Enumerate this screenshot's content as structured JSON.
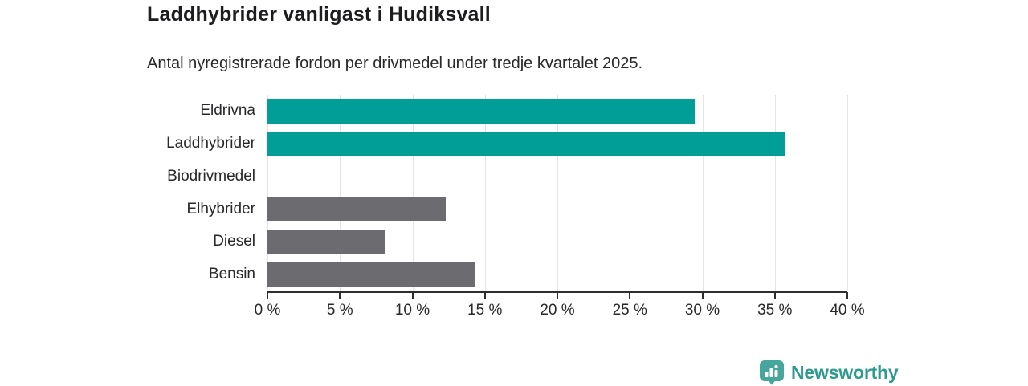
{
  "header": {
    "title": "Laddhybrider vanligast i Hudiksvall",
    "subtitle": "Antal nyregistrerade fordon per drivmedel under tredje kvartalet 2025."
  },
  "chart_data": {
    "type": "bar",
    "orientation": "horizontal",
    "title": "Laddhybrider vanligast i Hudiksvall",
    "subtitle": "Antal nyregistrerade fordon per drivmedel under tredje kvartalet 2025.",
    "categories": [
      "Eldrivna",
      "Laddhybrider",
      "Biodrivmedel",
      "Elhybrider",
      "Diesel",
      "Bensin"
    ],
    "values": [
      29.5,
      35.7,
      0,
      12.3,
      8.1,
      14.3
    ],
    "unit": "%",
    "bar_colors": [
      "#009e96",
      "#009e96",
      "#6b6b70",
      "#6b6b70",
      "#6b6b70",
      "#6b6b70"
    ],
    "xlim": [
      0,
      40
    ],
    "x_ticks": [
      0,
      5,
      10,
      15,
      20,
      25,
      30,
      35,
      40
    ],
    "x_tick_labels": [
      "0 %",
      "5 %",
      "10 %",
      "15 %",
      "20 %",
      "25 %",
      "30 %",
      "35 %",
      "40 %"
    ],
    "xlabel": "",
    "ylabel": "",
    "grid": "vertical",
    "legend": "none"
  },
  "branding": {
    "logo_text": "Newsworthy",
    "logo_text_color": "#2f9a90",
    "logo_icon_color": "#46a59d",
    "icon": "newsworthy-bar-chart-bubble-icon"
  },
  "colors": {
    "highlight": "#009e96",
    "muted": "#6b6b70",
    "grid": "#e4e4e7",
    "axis": "#2e2e30",
    "text": "#28282a",
    "title_text": "#1d1d1f",
    "background": "#ffffff"
  }
}
